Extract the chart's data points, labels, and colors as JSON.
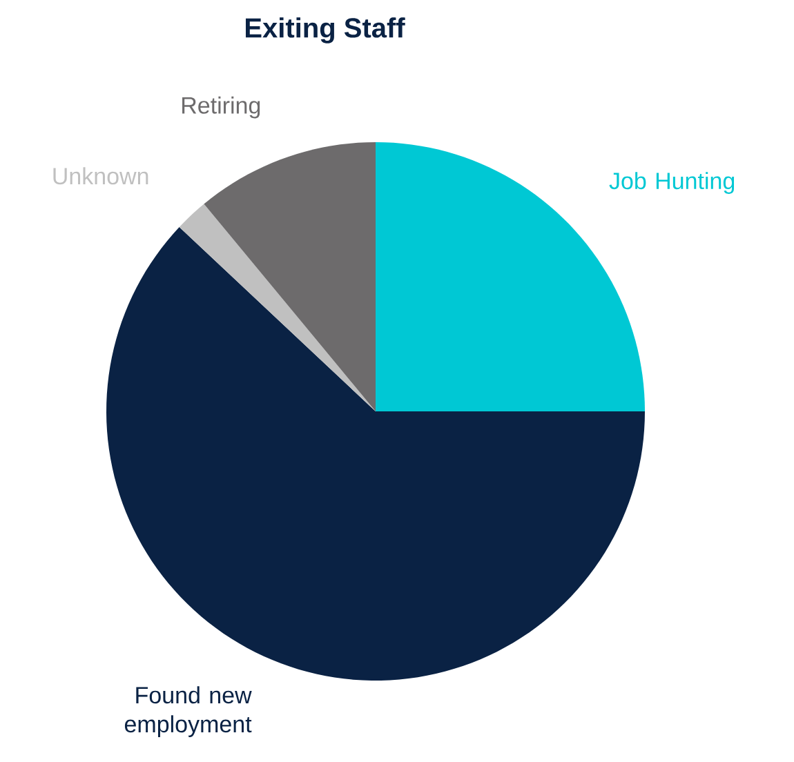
{
  "chart_data": {
    "type": "pie",
    "title": "Exiting Staff",
    "categories": [
      "Job Hunting",
      "Found new employment",
      "Unknown",
      "Retiring"
    ],
    "values": [
      25,
      62,
      2,
      11
    ],
    "colors": [
      "#00c8d4",
      "#0a2244",
      "#c0c0c0",
      "#6d6b6c"
    ]
  }
}
